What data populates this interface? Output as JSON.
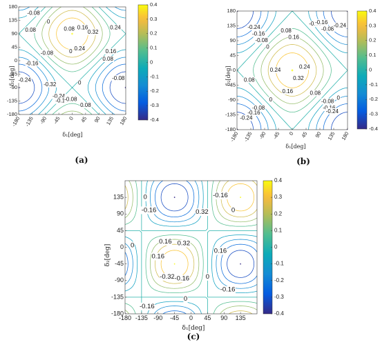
{
  "chart_data": [
    {
      "id": "a",
      "type": "contour",
      "caption": "(a)",
      "xlabel": "δ₁[deg]",
      "ylabel": "δ₂[deg]",
      "xlim": [
        -180,
        180
      ],
      "ylim": [
        -180,
        180
      ],
      "xticks": [
        "-180",
        "-135",
        "-90",
        "-45",
        "0",
        "45",
        "90",
        "135",
        "180"
      ],
      "yticks": [
        "180",
        "135",
        "90",
        "45",
        "0",
        "-45",
        "-90",
        "-135",
        "-180"
      ],
      "levels": [
        -0.4,
        -0.32,
        -0.24,
        -0.16,
        -0.08,
        0,
        0.08,
        0.16,
        0.24,
        0.32,
        0.4
      ],
      "colorbar": {
        "min": -0.4,
        "max": 0.4,
        "ticks": [
          "0.4",
          "0.3",
          "0.2",
          "0.1",
          "0",
          "-0.1",
          "-0.2",
          "-0.3",
          "-0.4"
        ]
      },
      "contour_labels": [
        {
          "text": "-0.08",
          "x": -130,
          "y": 158
        },
        {
          "text": "0.08",
          "x": -140,
          "y": 102
        },
        {
          "text": "0",
          "x": -80,
          "y": 130
        },
        {
          "text": "0.08",
          "x": -10,
          "y": 105
        },
        {
          "text": "0.16",
          "x": 35,
          "y": 110
        },
        {
          "text": "0.32",
          "x": 70,
          "y": 95
        },
        {
          "text": "0.24",
          "x": 145,
          "y": 110
        },
        {
          "text": "0.24",
          "x": 25,
          "y": 40
        },
        {
          "text": "0.16",
          "x": 130,
          "y": 30
        },
        {
          "text": "0.08",
          "x": 120,
          "y": 5
        },
        {
          "text": "-0.08",
          "x": -85,
          "y": 25
        },
        {
          "text": "0",
          "x": -5,
          "y": 30
        },
        {
          "text": "-0.16",
          "x": -135,
          "y": -10
        },
        {
          "text": "-0.24",
          "x": -160,
          "y": -65
        },
        {
          "text": "-0.32",
          "x": -75,
          "y": -80
        },
        {
          "text": "0",
          "x": 25,
          "y": -75
        },
        {
          "text": "-0.08",
          "x": 155,
          "y": -60
        },
        {
          "text": "-0.24",
          "x": -45,
          "y": -120
        },
        {
          "text": "-0.16",
          "x": -35,
          "y": -135
        },
        {
          "text": "-0.08",
          "x": -5,
          "y": -130
        },
        {
          "text": "0.08",
          "x": 45,
          "y": -150
        }
      ]
    },
    {
      "id": "b",
      "type": "contour",
      "caption": "(b)",
      "xlabel": "δ₁[deg]",
      "ylabel": "δ₂[deg]",
      "xlim": [
        -180,
        180
      ],
      "ylim": [
        -180,
        180
      ],
      "xticks": [
        "-180",
        "-135",
        "-90",
        "-45",
        "0",
        "45",
        "90",
        "135",
        "180"
      ],
      "yticks": [
        "180",
        "135",
        "90",
        "45",
        "0",
        "-45",
        "-90",
        "-135",
        "-180"
      ],
      "levels": [
        -0.4,
        -0.32,
        -0.24,
        -0.16,
        -0.08,
        0,
        0.08,
        0.16,
        0.24,
        0.32,
        0.4
      ],
      "colorbar": {
        "min": -0.4,
        "max": 0.4,
        "ticks": [
          "0.4",
          "0.3",
          "0.2",
          "0.1",
          "0",
          "-0.1",
          "-0.2",
          "-0.3",
          "-0.4"
        ]
      },
      "contour_labels": [
        {
          "text": "-0.24",
          "x": -125,
          "y": 130
        },
        {
          "text": "-0.16",
          "x": -110,
          "y": 110
        },
        {
          "text": "-0.08",
          "x": -100,
          "y": 90
        },
        {
          "text": "0",
          "x": -80,
          "y": 70
        },
        {
          "text": "0.08",
          "x": -20,
          "y": 120
        },
        {
          "text": "0.16",
          "x": 5,
          "y": 100
        },
        {
          "text": "-0.08",
          "x": 75,
          "y": 140
        },
        {
          "text": "-0.16",
          "x": 95,
          "y": 145
        },
        {
          "text": "-0.08",
          "x": 115,
          "y": 125
        },
        {
          "text": "-0.24",
          "x": 155,
          "y": 135
        },
        {
          "text": "0.24",
          "x": -55,
          "y": 0
        },
        {
          "text": "0.24",
          "x": 40,
          "y": 10
        },
        {
          "text": "0.32",
          "x": 20,
          "y": -25
        },
        {
          "text": "0.16",
          "x": -15,
          "y": -65
        },
        {
          "text": "0.08",
          "x": -140,
          "y": -30
        },
        {
          "text": "0.08",
          "x": 75,
          "y": -70
        },
        {
          "text": "0",
          "x": -70,
          "y": -90
        },
        {
          "text": "0",
          "x": 150,
          "y": -85
        },
        {
          "text": "-0.08",
          "x": 115,
          "y": -95
        },
        {
          "text": "-0.16",
          "x": 120,
          "y": -115
        },
        {
          "text": "-0.24",
          "x": 130,
          "y": -125
        },
        {
          "text": "-0.08",
          "x": -110,
          "y": -115
        },
        {
          "text": "-0.16",
          "x": -125,
          "y": -130
        },
        {
          "text": "-0.24",
          "x": -150,
          "y": -145
        }
      ]
    },
    {
      "id": "c",
      "type": "contour",
      "caption": "(c)",
      "xlabel": "δ₁[deg]",
      "ylabel": "δ₂[deg]",
      "xlim": [
        -180,
        180
      ],
      "ylim": [
        -180,
        180
      ],
      "xticks": [
        "-180",
        "-135",
        "-90",
        "-45",
        "0",
        "45",
        "90",
        "135"
      ],
      "yticks": [
        "135",
        "90",
        "45",
        "0",
        "-45",
        "-90",
        "-135",
        "-180"
      ],
      "levels": [
        -0.4,
        -0.32,
        -0.24,
        -0.16,
        -0.08,
        0,
        0.08,
        0.16,
        0.24,
        0.32,
        0.4
      ],
      "colorbar": {
        "min": -0.4,
        "max": 0.4,
        "ticks": [
          "0.4",
          "0.3",
          "0.2",
          "0.1",
          "0",
          "-0.1",
          "-0.2",
          "-0.3",
          "-0.4"
        ]
      },
      "contour_labels": [
        {
          "text": "0",
          "x": -125,
          "y": 135
        },
        {
          "text": "-0.16",
          "x": -115,
          "y": 100
        },
        {
          "text": "0.32",
          "x": 30,
          "y": 95
        },
        {
          "text": "-0.16",
          "x": 80,
          "y": 140
        },
        {
          "text": "0",
          "x": 115,
          "y": 100
        },
        {
          "text": "0",
          "x": -160,
          "y": 5
        },
        {
          "text": "0.16",
          "x": -70,
          "y": 15
        },
        {
          "text": "0.32",
          "x": -20,
          "y": 10
        },
        {
          "text": "0.16",
          "x": 80,
          "y": -10
        },
        {
          "text": "0.16",
          "x": -90,
          "y": -25
        },
        {
          "text": "-0.32",
          "x": -65,
          "y": -80
        },
        {
          "text": "-0.16",
          "x": -25,
          "y": -85
        },
        {
          "text": "0",
          "x": 45,
          "y": -80
        },
        {
          "text": "-0.16",
          "x": 100,
          "y": -115
        },
        {
          "text": "0",
          "x": -15,
          "y": -140
        },
        {
          "text": "-0.16",
          "x": -120,
          "y": -160
        }
      ]
    }
  ]
}
